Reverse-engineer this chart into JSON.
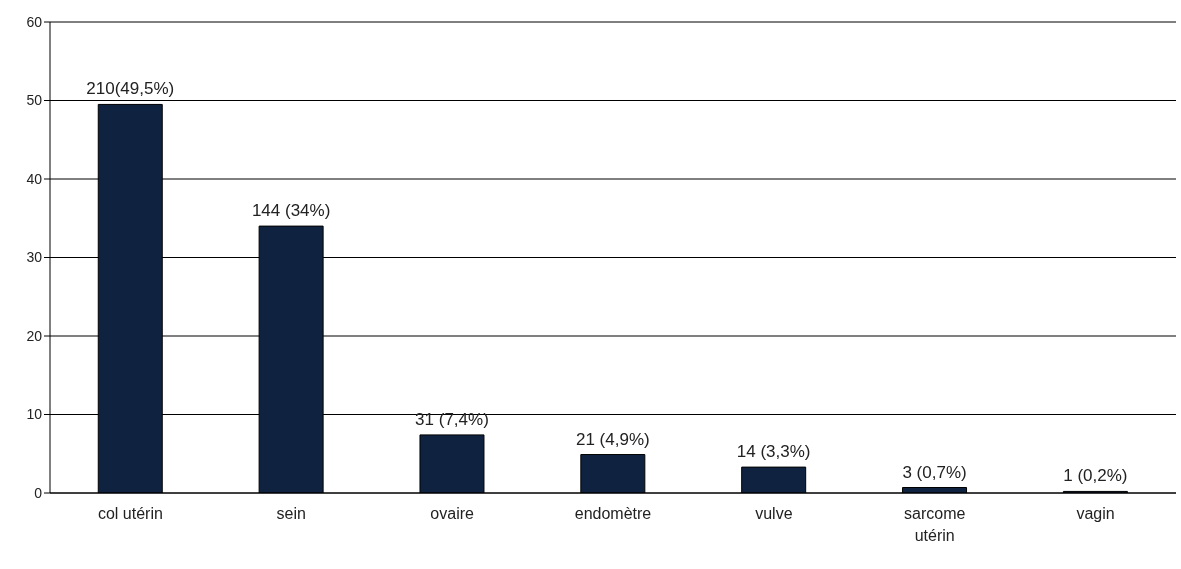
{
  "chart_data": {
    "type": "bar",
    "categories": [
      "col utérin",
      "sein",
      "ovaire",
      "endomètre",
      "vulve",
      "sarcome utérin",
      "vagin"
    ],
    "values": [
      49.5,
      34,
      7.4,
      4.9,
      3.3,
      0.7,
      0.2
    ],
    "value_labels": [
      "210(49,5%)",
      "144 (34%)",
      "31 (7,4%)",
      "21 (4,9%)",
      "14 (3,3%)",
      "3 (0,7%)",
      "1 (0,2%)"
    ],
    "color": "#0f2340",
    "ylim": [
      0,
      60
    ],
    "yticks": [
      0,
      10,
      20,
      30,
      40,
      50,
      60
    ],
    "grid": "y",
    "legend": false
  }
}
